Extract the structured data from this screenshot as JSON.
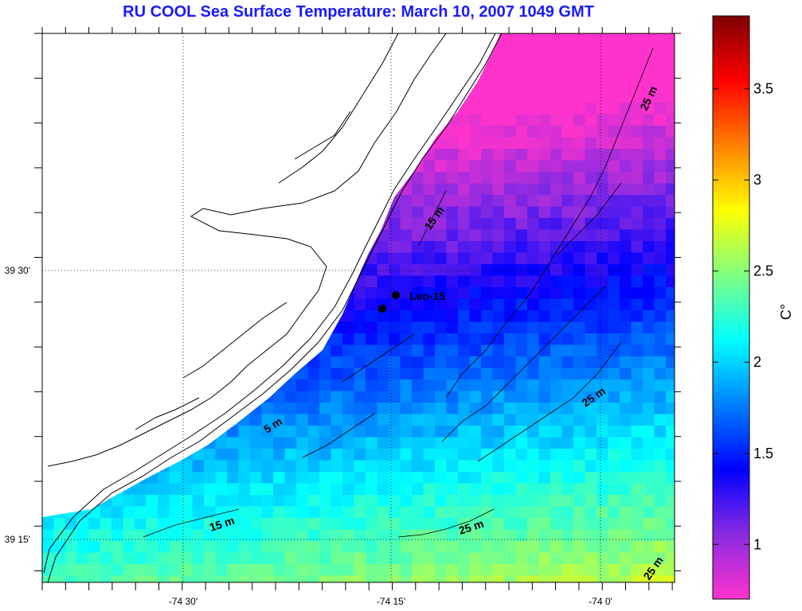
{
  "title": "RU COOL  Sea Surface Temperature:  March 10, 2007 1049 GMT",
  "colorbar": {
    "unit": "C°",
    "range": [
      0.7,
      3.9
    ],
    "ticks": [
      {
        "value": 1,
        "label": "1"
      },
      {
        "value": 1.5,
        "label": "1.5"
      },
      {
        "value": 2,
        "label": "2"
      },
      {
        "value": 2.5,
        "label": "2.5"
      },
      {
        "value": 3,
        "label": "3"
      },
      {
        "value": 3.5,
        "label": "3.5"
      }
    ],
    "colors": [
      "#ff33cc",
      "#8a2be2",
      "#0000ff",
      "#0080ff",
      "#00ffff",
      "#80ff80",
      "#ffff00",
      "#ff8000",
      "#ff0000",
      "#800000"
    ]
  },
  "axes": {
    "lon_labels": [
      "-74 30'",
      "-74 15'",
      "-74 0'"
    ],
    "lat_labels": [
      "39 30'",
      "39 15'"
    ]
  },
  "contour_labels": [
    "5 m",
    "15 m",
    "15 m",
    "25 m",
    "25 m",
    "25 m",
    "25 m"
  ],
  "station": {
    "name": "Leo-15"
  }
}
